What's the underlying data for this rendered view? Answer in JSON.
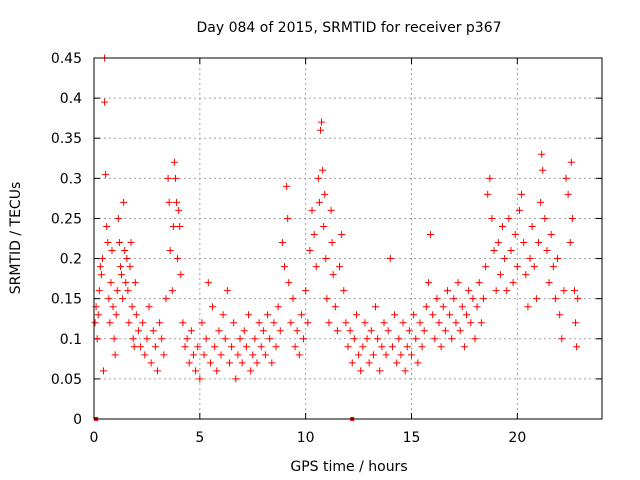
{
  "chart_data": {
    "type": "scatter",
    "title": "Day 084 of 2015, SRMTID for receiver p367",
    "xlabel": "GPS time / hours",
    "ylabel": "SRMTID / TECUs",
    "xlim": [
      0,
      24
    ],
    "ylim": [
      0,
      0.45
    ],
    "xticks": [
      0,
      5,
      10,
      15,
      20
    ],
    "xtick_labels": [
      "0",
      "5",
      "10",
      "15",
      "20"
    ],
    "yticks": [
      0,
      0.05,
      0.1,
      0.15,
      0.2,
      0.25,
      0.3,
      0.35,
      0.4,
      0.45
    ],
    "ytick_labels": [
      "0",
      "0.05",
      "0.1",
      "0.15",
      "0.2",
      "0.25",
      "0.3",
      "0.35",
      "0.4",
      "0.45"
    ],
    "grid": true,
    "marker": "+",
    "colors": {
      "series": "#ff0000",
      "grid": "#a0a0a0",
      "axis": "#000000"
    },
    "series": [
      {
        "name": "SRMTID",
        "points": [
          [
            0.05,
            0.12
          ],
          [
            0.1,
            0.14
          ],
          [
            0.15,
            0.1
          ],
          [
            0.2,
            0.13
          ],
          [
            0.25,
            0.16
          ],
          [
            0.3,
            0.19
          ],
          [
            0.35,
            0.18
          ],
          [
            0.4,
            0.2
          ],
          [
            0.45,
            0.06
          ],
          [
            0.5,
            0.45
          ],
          [
            0.5,
            0.395
          ],
          [
            0.55,
            0.305
          ],
          [
            0.6,
            0.24
          ],
          [
            0.65,
            0.22
          ],
          [
            0.7,
            0.15
          ],
          [
            0.75,
            0.12
          ],
          [
            0.8,
            0.17
          ],
          [
            0.85,
            0.21
          ],
          [
            0.9,
            0.14
          ],
          [
            0.95,
            0.1
          ],
          [
            1.0,
            0.08
          ],
          [
            1.05,
            0.13
          ],
          [
            1.1,
            0.16
          ],
          [
            1.15,
            0.25
          ],
          [
            1.2,
            0.22
          ],
          [
            1.25,
            0.19
          ],
          [
            1.3,
            0.18
          ],
          [
            1.35,
            0.15
          ],
          [
            1.4,
            0.27
          ],
          [
            1.45,
            0.21
          ],
          [
            1.5,
            0.17
          ],
          [
            1.55,
            0.2
          ],
          [
            1.6,
            0.16
          ],
          [
            1.65,
            0.12
          ],
          [
            1.7,
            0.19
          ],
          [
            1.75,
            0.22
          ],
          [
            1.8,
            0.14
          ],
          [
            1.85,
            0.1
          ],
          [
            1.9,
            0.09
          ],
          [
            1.95,
            0.17
          ],
          [
            2.0,
            0.13
          ],
          [
            2.1,
            0.11
          ],
          [
            2.2,
            0.09
          ],
          [
            2.3,
            0.12
          ],
          [
            2.4,
            0.08
          ],
          [
            2.5,
            0.1
          ],
          [
            2.6,
            0.14
          ],
          [
            2.7,
            0.07
          ],
          [
            2.8,
            0.11
          ],
          [
            2.9,
            0.09
          ],
          [
            3.0,
            0.06
          ],
          [
            3.1,
            0.12
          ],
          [
            3.2,
            0.1
          ],
          [
            3.3,
            0.08
          ],
          [
            3.4,
            0.15
          ],
          [
            3.5,
            0.3
          ],
          [
            3.55,
            0.27
          ],
          [
            3.6,
            0.21
          ],
          [
            3.7,
            0.16
          ],
          [
            3.75,
            0.24
          ],
          [
            3.8,
            0.32
          ],
          [
            3.85,
            0.3
          ],
          [
            3.9,
            0.27
          ],
          [
            3.95,
            0.2
          ],
          [
            4.0,
            0.26
          ],
          [
            4.05,
            0.24
          ],
          [
            4.1,
            0.18
          ],
          [
            4.2,
            0.12
          ],
          [
            4.3,
            0.09
          ],
          [
            4.4,
            0.1
          ],
          [
            4.5,
            0.07
          ],
          [
            4.6,
            0.11
          ],
          [
            4.7,
            0.08
          ],
          [
            4.8,
            0.06
          ],
          [
            4.9,
            0.09
          ],
          [
            5.0,
            0.05
          ],
          [
            5.1,
            0.12
          ],
          [
            5.2,
            0.08
          ],
          [
            5.3,
            0.1
          ],
          [
            5.4,
            0.17
          ],
          [
            5.5,
            0.07
          ],
          [
            5.6,
            0.14
          ],
          [
            5.7,
            0.09
          ],
          [
            5.8,
            0.06
          ],
          [
            5.9,
            0.11
          ],
          [
            6.0,
            0.08
          ],
          [
            6.1,
            0.13
          ],
          [
            6.2,
            0.1
          ],
          [
            6.3,
            0.16
          ],
          [
            6.4,
            0.07
          ],
          [
            6.5,
            0.09
          ],
          [
            6.6,
            0.12
          ],
          [
            6.7,
            0.05
          ],
          [
            6.8,
            0.08
          ],
          [
            6.9,
            0.1
          ],
          [
            7.0,
            0.07
          ],
          [
            7.1,
            0.11
          ],
          [
            7.2,
            0.09
          ],
          [
            7.3,
            0.13
          ],
          [
            7.4,
            0.06
          ],
          [
            7.5,
            0.08
          ],
          [
            7.6,
            0.1
          ],
          [
            7.7,
            0.07
          ],
          [
            7.8,
            0.12
          ],
          [
            7.9,
            0.09
          ],
          [
            8.0,
            0.11
          ],
          [
            8.1,
            0.08
          ],
          [
            8.2,
            0.13
          ],
          [
            8.3,
            0.1
          ],
          [
            8.4,
            0.07
          ],
          [
            8.5,
            0.12
          ],
          [
            8.6,
            0.09
          ],
          [
            8.7,
            0.14
          ],
          [
            8.8,
            0.11
          ],
          [
            8.9,
            0.22
          ],
          [
            9.0,
            0.19
          ],
          [
            9.1,
            0.29
          ],
          [
            9.15,
            0.25
          ],
          [
            9.2,
            0.17
          ],
          [
            9.3,
            0.12
          ],
          [
            9.4,
            0.15
          ],
          [
            9.5,
            0.09
          ],
          [
            9.6,
            0.11
          ],
          [
            9.7,
            0.08
          ],
          [
            9.8,
            0.13
          ],
          [
            9.9,
            0.1
          ],
          [
            10.0,
            0.16
          ],
          [
            10.1,
            0.12
          ],
          [
            10.2,
            0.21
          ],
          [
            10.3,
            0.26
          ],
          [
            10.4,
            0.23
          ],
          [
            10.5,
            0.19
          ],
          [
            10.6,
            0.3
          ],
          [
            10.65,
            0.27
          ],
          [
            10.7,
            0.36
          ],
          [
            10.75,
            0.37
          ],
          [
            10.8,
            0.31
          ],
          [
            10.85,
            0.24
          ],
          [
            10.9,
            0.28
          ],
          [
            10.95,
            0.2
          ],
          [
            11.0,
            0.15
          ],
          [
            11.1,
            0.12
          ],
          [
            11.2,
            0.26
          ],
          [
            11.25,
            0.22
          ],
          [
            11.3,
            0.18
          ],
          [
            11.4,
            0.14
          ],
          [
            11.5,
            0.11
          ],
          [
            11.6,
            0.19
          ],
          [
            11.7,
            0.23
          ],
          [
            11.8,
            0.16
          ],
          [
            11.9,
            0.12
          ],
          [
            12.0,
            0.09
          ],
          [
            12.1,
            0.11
          ],
          [
            12.2,
            0.07
          ],
          [
            12.3,
            0.1
          ],
          [
            12.4,
            0.13
          ],
          [
            12.5,
            0.08
          ],
          [
            12.6,
            0.06
          ],
          [
            12.7,
            0.09
          ],
          [
            12.8,
            0.12
          ],
          [
            12.9,
            0.1
          ],
          [
            13.0,
            0.07
          ],
          [
            13.1,
            0.11
          ],
          [
            13.2,
            0.08
          ],
          [
            13.3,
            0.14
          ],
          [
            13.4,
            0.1
          ],
          [
            13.5,
            0.06
          ],
          [
            13.6,
            0.09
          ],
          [
            13.7,
            0.12
          ],
          [
            13.8,
            0.08
          ],
          [
            13.9,
            0.11
          ],
          [
            14.0,
            0.2
          ],
          [
            14.1,
            0.09
          ],
          [
            14.2,
            0.13
          ],
          [
            14.3,
            0.07
          ],
          [
            14.4,
            0.1
          ],
          [
            14.5,
            0.08
          ],
          [
            14.6,
            0.12
          ],
          [
            14.7,
            0.06
          ],
          [
            14.8,
            0.09
          ],
          [
            14.9,
            0.11
          ],
          [
            15.0,
            0.08
          ],
          [
            15.1,
            0.13
          ],
          [
            15.2,
            0.1
          ],
          [
            15.3,
            0.07
          ],
          [
            15.4,
            0.12
          ],
          [
            15.5,
            0.09
          ],
          [
            15.6,
            0.11
          ],
          [
            15.7,
            0.14
          ],
          [
            15.8,
            0.17
          ],
          [
            15.9,
            0.23
          ],
          [
            16.0,
            0.13
          ],
          [
            16.1,
            0.1
          ],
          [
            16.2,
            0.15
          ],
          [
            16.3,
            0.12
          ],
          [
            16.4,
            0.09
          ],
          [
            16.5,
            0.14
          ],
          [
            16.6,
            0.11
          ],
          [
            16.7,
            0.16
          ],
          [
            16.8,
            0.13
          ],
          [
            16.9,
            0.1
          ],
          [
            17.0,
            0.15
          ],
          [
            17.1,
            0.12
          ],
          [
            17.2,
            0.17
          ],
          [
            17.3,
            0.11
          ],
          [
            17.4,
            0.14
          ],
          [
            17.5,
            0.09
          ],
          [
            17.6,
            0.13
          ],
          [
            17.7,
            0.16
          ],
          [
            17.8,
            0.12
          ],
          [
            17.9,
            0.15
          ],
          [
            18.0,
            0.1
          ],
          [
            18.1,
            0.14
          ],
          [
            18.2,
            0.17
          ],
          [
            18.3,
            0.12
          ],
          [
            18.4,
            0.15
          ],
          [
            18.5,
            0.19
          ],
          [
            18.6,
            0.28
          ],
          [
            18.7,
            0.3
          ],
          [
            18.8,
            0.25
          ],
          [
            18.9,
            0.21
          ],
          [
            19.0,
            0.16
          ],
          [
            19.1,
            0.22
          ],
          [
            19.2,
            0.18
          ],
          [
            19.3,
            0.24
          ],
          [
            19.4,
            0.2
          ],
          [
            19.5,
            0.16
          ],
          [
            19.6,
            0.25
          ],
          [
            19.7,
            0.21
          ],
          [
            19.8,
            0.17
          ],
          [
            19.9,
            0.23
          ],
          [
            20.0,
            0.19
          ],
          [
            20.1,
            0.26
          ],
          [
            20.2,
            0.28
          ],
          [
            20.3,
            0.22
          ],
          [
            20.4,
            0.18
          ],
          [
            20.5,
            0.14
          ],
          [
            20.6,
            0.2
          ],
          [
            20.7,
            0.24
          ],
          [
            20.8,
            0.19
          ],
          [
            20.9,
            0.15
          ],
          [
            21.0,
            0.22
          ],
          [
            21.1,
            0.27
          ],
          [
            21.15,
            0.33
          ],
          [
            21.2,
            0.31
          ],
          [
            21.3,
            0.25
          ],
          [
            21.4,
            0.21
          ],
          [
            21.5,
            0.17
          ],
          [
            21.6,
            0.23
          ],
          [
            21.7,
            0.19
          ],
          [
            21.8,
            0.15
          ],
          [
            21.9,
            0.2
          ],
          [
            22.0,
            0.13
          ],
          [
            22.1,
            0.1
          ],
          [
            22.2,
            0.16
          ],
          [
            22.3,
            0.3
          ],
          [
            22.4,
            0.28
          ],
          [
            22.5,
            0.22
          ],
          [
            22.55,
            0.32
          ],
          [
            22.6,
            0.25
          ],
          [
            22.7,
            0.16
          ],
          [
            22.75,
            0.12
          ],
          [
            22.8,
            0.09
          ],
          [
            22.85,
            0.15
          ]
        ]
      }
    ],
    "zero_markers": [
      0.1,
      12.2
    ]
  }
}
